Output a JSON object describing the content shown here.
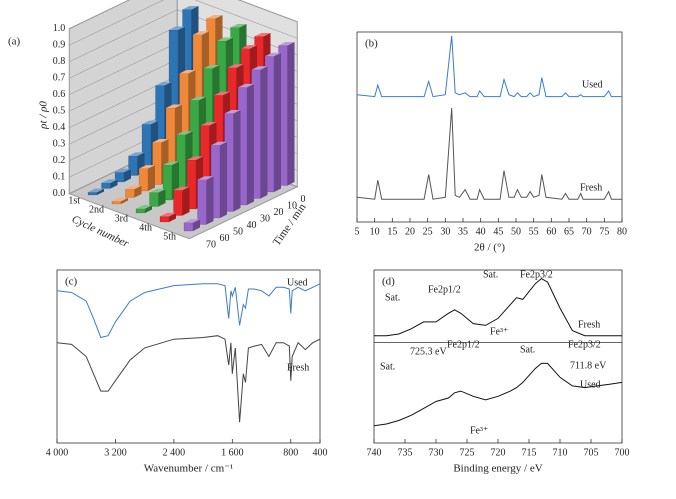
{
  "chart_data": [
    {
      "type": "bar3d",
      "panel": "(a)",
      "ylabel": "ρt / ρ0",
      "xlabel": "Cycle number",
      "zlabel": "Time / min",
      "categories": [
        "1st",
        "2nd",
        "3rd",
        "4th",
        "5th"
      ],
      "x": [
        0,
        10,
        20,
        30,
        40,
        50,
        60,
        70
      ],
      "series": [
        {
          "color": "#2e75b6",
          "values": [
            1.0,
            0.9,
            0.55,
            0.32,
            0.14,
            0.07,
            0.04,
            0.02
          ]
        },
        {
          "color": "#f0883a",
          "values": [
            1.0,
            0.93,
            0.7,
            0.5,
            0.3,
            0.16,
            0.06,
            0.02
          ]
        },
        {
          "color": "#3aa845",
          "values": [
            1.0,
            0.95,
            0.8,
            0.62,
            0.42,
            0.25,
            0.1,
            0.03
          ]
        },
        {
          "color": "#e8282a",
          "values": [
            1.0,
            0.96,
            0.87,
            0.72,
            0.55,
            0.35,
            0.18,
            0.04
          ]
        },
        {
          "color": "#9966cc",
          "values": [
            1.0,
            0.97,
            0.92,
            0.84,
            0.7,
            0.52,
            0.32,
            0.06
          ]
        }
      ],
      "ylim": [
        0,
        1
      ],
      "yticks": [
        {
          "value": 0,
          "label": "0.0"
        },
        {
          "value": 0.1,
          "label": "0.1"
        },
        {
          "value": 0.2,
          "label": "0.2"
        },
        {
          "value": 0.3,
          "label": "0.3"
        },
        {
          "value": 0.4,
          "label": "0.4"
        },
        {
          "value": 0.5,
          "label": "0.5"
        },
        {
          "value": 0.6,
          "label": "0.6"
        },
        {
          "value": 0.7,
          "label": "0.7"
        },
        {
          "value": 0.8,
          "label": "0.8"
        },
        {
          "value": 0.9,
          "label": "0.9"
        },
        {
          "value": 1,
          "label": "1.0"
        }
      ]
    },
    {
      "type": "line",
      "panel": "(b)",
      "xlabel": "2θ / (°)",
      "xlim": [
        5,
        80
      ],
      "xticks": [
        5,
        10,
        15,
        20,
        25,
        30,
        35,
        40,
        45,
        50,
        55,
        60,
        65,
        70,
        75,
        80
      ],
      "ylim": [
        0,
        100
      ],
      "x": [
        5,
        10,
        10.9,
        12,
        24,
        25.3,
        26.5,
        30,
        31.8,
        32.8,
        34,
        35.6,
        37,
        39,
        39.7,
        41,
        45.5,
        46.6,
        48,
        49.5,
        50.4,
        51.5,
        53,
        54,
        55,
        56.5,
        57.3,
        58.5,
        63,
        64,
        65,
        67.5,
        68.3,
        69,
        75,
        76.2,
        77,
        80
      ],
      "series": [
        {
          "color": "#3a7dc9",
          "values": [
            67,
            66,
            72,
            66,
            66,
            74,
            66,
            67,
            98,
            68,
            67,
            68,
            66,
            66,
            69,
            66,
            66,
            75,
            67,
            66,
            68,
            66,
            66,
            68,
            66,
            67,
            76,
            66,
            66,
            68,
            66,
            66,
            67,
            66,
            66,
            69,
            66,
            66
          ]
        },
        {
          "color": "#555555",
          "values": [
            13,
            12,
            22,
            12,
            12,
            25,
            12,
            13,
            60,
            14,
            13,
            17,
            12,
            12,
            17,
            12,
            12,
            27,
            13,
            13,
            17,
            13,
            13,
            16,
            13,
            14,
            25,
            13,
            12,
            15,
            12,
            12,
            15,
            12,
            12,
            16,
            12,
            12
          ]
        }
      ],
      "annotations": [
        "Used",
        "Fresh"
      ]
    },
    {
      "type": "line",
      "panel": "(c)",
      "xlabel": "Wavenumber / cm⁻¹",
      "xlim": [
        4000,
        400
      ],
      "xticks": [
        {
          "value": 4000,
          "label": "4 000"
        },
        {
          "value": 3200,
          "label": "3 200"
        },
        {
          "value": 2400,
          "label": "2 400"
        },
        {
          "value": 1600,
          "label": "1 600"
        },
        800,
        400
      ],
      "ylim": [
        0,
        100
      ],
      "x": [
        4000,
        3800,
        3600,
        3500,
        3400,
        3300,
        3200,
        3000,
        2800,
        2400,
        2000,
        1800,
        1700,
        1650,
        1620,
        1600,
        1560,
        1500,
        1450,
        1420,
        1380,
        1300,
        1200,
        1100,
        1000,
        900,
        820,
        800,
        780,
        700,
        600,
        500,
        400
      ],
      "series": [
        {
          "color": "#3a7dc9",
          "values": [
            88,
            87,
            82,
            72,
            61,
            62,
            70,
            82,
            87,
            91,
            92,
            92,
            91,
            72,
            88,
            85,
            90,
            68,
            80,
            78,
            89,
            89,
            88,
            85,
            90,
            90,
            89,
            75,
            88,
            90,
            88,
            90,
            92
          ]
        },
        {
          "color": "#444444",
          "values": [
            58,
            57,
            50,
            40,
            30,
            30,
            36,
            48,
            55,
            60,
            61,
            62,
            60,
            45,
            58,
            40,
            55,
            12,
            40,
            35,
            55,
            56,
            57,
            50,
            58,
            58,
            56,
            36,
            50,
            58,
            54,
            58,
            60
          ]
        }
      ],
      "annotations": [
        "Used",
        "Fresh"
      ]
    },
    {
      "type": "line",
      "panel": "(d)",
      "xlabel": "Binding energy / eV",
      "xlim": [
        740,
        700
      ],
      "xticks": [
        740,
        735,
        730,
        725,
        720,
        715,
        710,
        705,
        700
      ],
      "ylim": [
        0,
        100
      ],
      "x": [
        740,
        738,
        736,
        734,
        732,
        730,
        728,
        727,
        726,
        724,
        722,
        720,
        718,
        717,
        716,
        714,
        713,
        712,
        710,
        708,
        706,
        704,
        702,
        700
      ],
      "series": [
        {
          "color": "#111111",
          "values": [
            62,
            62,
            63,
            66,
            70,
            70,
            75,
            77,
            75,
            69,
            68,
            72,
            80,
            84,
            83,
            92,
            95,
            93,
            78,
            65,
            62,
            62,
            62,
            62
          ]
        },
        {
          "color": "#111111",
          "values": [
            10,
            11,
            13,
            16,
            20,
            24,
            26,
            29,
            30,
            27,
            25,
            27,
            30,
            32,
            35,
            43,
            46,
            46,
            38,
            33,
            32,
            33,
            34,
            35
          ]
        }
      ],
      "annotations": [
        "Sat.",
        "Fe2p1/2",
        "Sat.",
        "Fe2p3/2",
        "Fresh",
        "Sat.",
        "725.3 eV",
        "Fe2p1/2",
        "Fe³⁺",
        "Sat.",
        "Fe2p3/2",
        "711.8 eV",
        "Used",
        "Fe³⁺"
      ]
    }
  ]
}
